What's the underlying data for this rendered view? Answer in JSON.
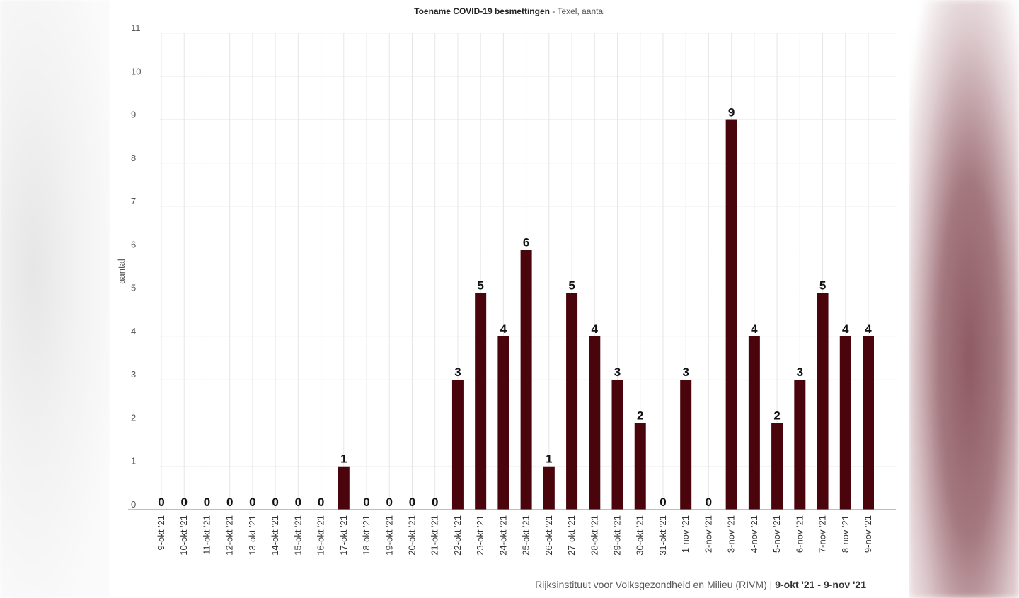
{
  "chart_data": {
    "type": "bar",
    "title": "Toename COVID-19 besmettingen",
    "subtitle": "Texel, aantal",
    "title_separator": " - ",
    "ylabel": "aantal",
    "xlabel": "",
    "ylim": [
      0,
      11
    ],
    "yticks": [
      "0",
      "1",
      "2",
      "3",
      "4",
      "5",
      "6",
      "7",
      "8",
      "9",
      "10",
      "11"
    ],
    "grid": "vertical and horizontal, light",
    "bar_color": "#4a050c",
    "categories": [
      "9-okt '21",
      "10-okt '21",
      "11-okt '21",
      "12-okt '21",
      "13-okt '21",
      "14-okt '21",
      "15-okt '21",
      "16-okt '21",
      "17-okt '21",
      "18-okt '21",
      "19-okt '21",
      "20-okt '21",
      "21-okt '21",
      "22-okt '21",
      "23-okt '21",
      "24-okt '21",
      "25-okt '21",
      "26-okt '21",
      "27-okt '21",
      "28-okt '21",
      "29-okt '21",
      "30-okt '21",
      "31-okt '21",
      "1-nov '21",
      "2-nov '21",
      "3-nov '21",
      "4-nov '21",
      "5-nov '21",
      "6-nov '21",
      "7-nov '21",
      "8-nov '21",
      "9-nov '21"
    ],
    "values": [
      0,
      0,
      0,
      0,
      0,
      0,
      0,
      0,
      1,
      0,
      0,
      0,
      0,
      3,
      5,
      4,
      6,
      1,
      5,
      4,
      3,
      2,
      0,
      3,
      0,
      9,
      4,
      2,
      3,
      5,
      4,
      4
    ]
  },
  "source": {
    "text": "Rijksinstituut voor Volksgezondheid en Milieu (RIVM)",
    "separator": " | ",
    "period": "9-okt '21 - 9-nov '21"
  }
}
